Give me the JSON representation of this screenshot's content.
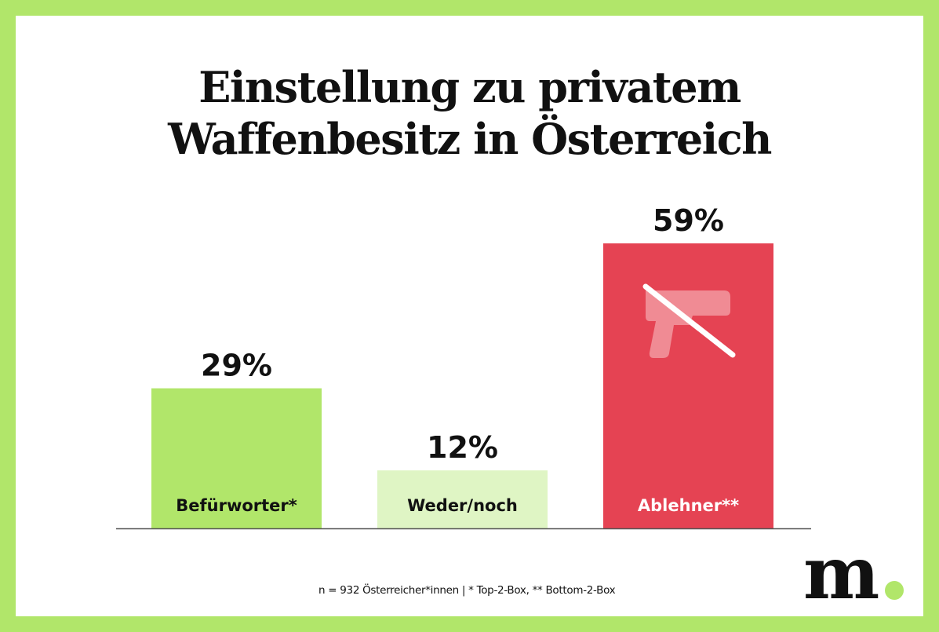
{
  "title_lines": [
    "Einstellung zu privatem",
    "Waffenbesitz in Österreich"
  ],
  "chart_data": {
    "type": "bar",
    "title": "Einstellung zu privatem Waffenbesitz in Österreich",
    "categories": [
      "Befürworter*",
      "Weder/noch",
      "Ablehner**"
    ],
    "values": [
      29,
      12,
      59
    ],
    "value_labels": [
      "29%",
      "12%",
      "59%"
    ],
    "colors": [
      "#b1e66a",
      "#dff5c4",
      "#e54353"
    ],
    "label_colors": [
      "#111111",
      "#111111",
      "#ffffff"
    ],
    "xlabel": "",
    "ylabel": "",
    "ylim": [
      0,
      60
    ],
    "grid": false,
    "annotations": [
      "no-gun-icon on Ablehner bar"
    ]
  },
  "footnote": "n = 932 Österreicher*innen | * Top-2-Box, ** Bottom-2-Box",
  "logo": "m.",
  "colors": {
    "border": "#b1e66a",
    "accent_red": "#e54353"
  }
}
